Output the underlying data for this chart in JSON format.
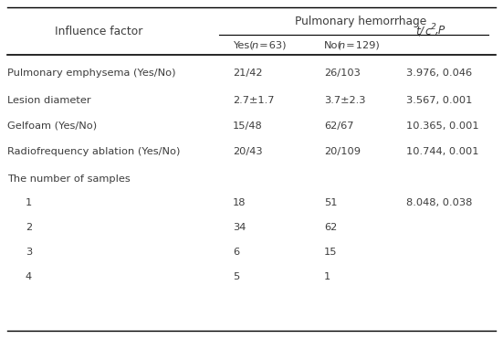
{
  "col_header_top": "Pulmonary hemorrhage",
  "col_header_left": "Influence factor",
  "col_header_sub1": "Yes(n = 63)",
  "col_header_sub2": "No(n = 129)",
  "rows": [
    {
      "factor": "Pulmonary emphysema (Yes/No)",
      "yes": "21/42",
      "no": "26/103",
      "stat": "3.976, 0.046",
      "indent": false
    },
    {
      "factor": "Lesion diameter",
      "yes": "2.7±1.7",
      "no": "3.7±2.3",
      "stat": "3.567, 0.001",
      "indent": false
    },
    {
      "factor": "Gelfoam (Yes/No)",
      "yes": "15/48",
      "no": "62/67",
      "stat": "10.365, 0.001",
      "indent": false
    },
    {
      "factor": "Radiofrequency ablation (Yes/No)",
      "yes": "20/43",
      "no": "20/109",
      "stat": "10.744, 0.001",
      "indent": false
    },
    {
      "factor": "The number of samples",
      "yes": "",
      "no": "",
      "stat": "",
      "indent": false
    },
    {
      "factor": "1",
      "yes": "18",
      "no": "51",
      "stat": "8.048, 0.038",
      "indent": true
    },
    {
      "factor": "2",
      "yes": "34",
      "no": "62",
      "stat": "",
      "indent": true
    },
    {
      "factor": "3",
      "yes": "6",
      "no": "15",
      "stat": "",
      "indent": true
    },
    {
      "factor": "4",
      "yes": "5",
      "no": "1",
      "stat": "",
      "indent": true
    }
  ],
  "normal_color": "#3c3c3c",
  "bg_color": "#ffffff",
  "fontsize": 8.2,
  "header_fontsize": 8.8
}
